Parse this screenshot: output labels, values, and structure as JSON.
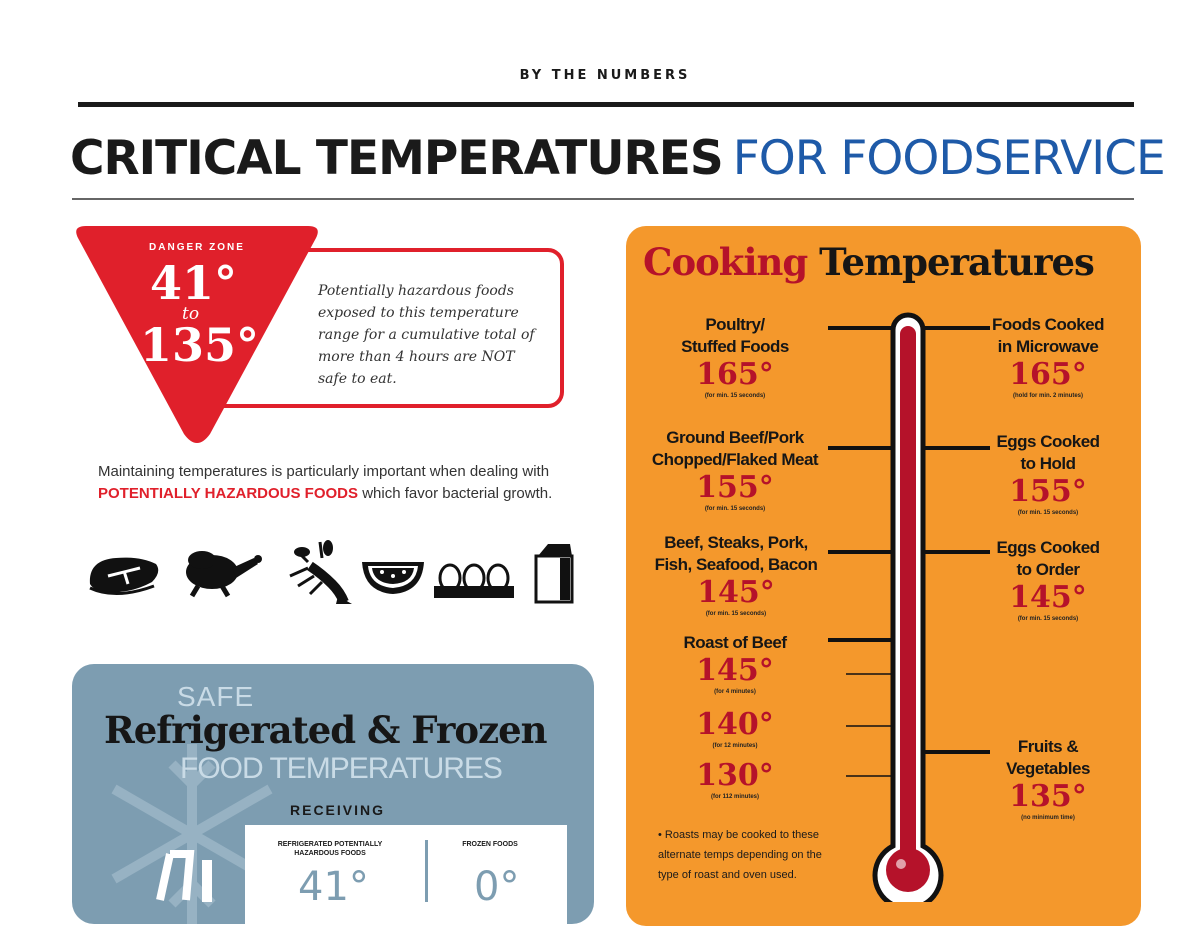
{
  "header": {
    "kicker": "BY THE NUMBERS",
    "title_main": "CRITICAL TEMPERATURES",
    "title_accent": "FOR FOODSERVICE",
    "accent_color": "#1e5aa8"
  },
  "danger_zone": {
    "label": "DANGER ZONE",
    "low": "41°",
    "to": "to",
    "high": "135°",
    "description": "Potentially hazardous foods exposed to this temperature range for a cumulative total of more than 4 hours are NOT safe to eat.",
    "color": "#e0202b"
  },
  "intro": {
    "before": "Maintaining temperatures is particularly important when dealing with ",
    "highlight": "POTENTIALLY HAZARDOUS FOODS",
    "after": " which favor bacterial growth."
  },
  "food_icons": [
    "steak-icon",
    "chicken-icon",
    "lobster-icon",
    "watermelon-icon",
    "eggs-icon",
    "milk-carton-icon"
  ],
  "refrigerated": {
    "safe": "SAFE",
    "title": "Refrigerated & Frozen",
    "subtitle": "FOOD TEMPERATURES",
    "receiving": "RECEIVING",
    "col1_label": "REFRIGERATED POTENTIALLY HAZARDOUS FOODS",
    "col1_value": "41°",
    "col2_label": "FROZEN FOODS",
    "col2_value": "0°",
    "color": "#7d9db1"
  },
  "cooking": {
    "title_a": "Cooking",
    "title_b": "Temperatures",
    "left_items": [
      {
        "name": "Poultry/\nStuffed Foods",
        "temp": "165°",
        "note": "(for min. 15 seconds)"
      },
      {
        "name": "Ground Beef/Pork\nChopped/Flaked Meat",
        "temp": "155°",
        "note": "(for min. 15 seconds)"
      },
      {
        "name": "Beef, Steaks, Pork,\nFish, Seafood, Bacon",
        "temp": "145°",
        "note": "(for min. 15 seconds)"
      },
      {
        "name": "Roast of Beef",
        "temp": "145°",
        "note": "(for 4 minutes)"
      },
      {
        "name": "",
        "temp": "140°",
        "note": "(for 12 minutes)"
      },
      {
        "name": "",
        "temp": "130°",
        "note": "(for 112 minutes)"
      }
    ],
    "right_items": [
      {
        "name": "Foods Cooked\nin Microwave",
        "temp": "165°",
        "note": "(hold for min. 2 minutes)"
      },
      {
        "name": "Eggs Cooked\nto Hold",
        "temp": "155°",
        "note": "(for min. 15 seconds)"
      },
      {
        "name": "Eggs Cooked\nto Order",
        "temp": "145°",
        "note": "(for min. 15 seconds)"
      },
      {
        "name": "Fruits &\nVegetables",
        "temp": "135°",
        "note": "(no minimum time)"
      }
    ],
    "roast_note": "• Roasts may be cooked to these alternate temps depending on the type of roast and oven used.",
    "panel_color": "#f4982c",
    "temp_color": "#b5122a"
  }
}
